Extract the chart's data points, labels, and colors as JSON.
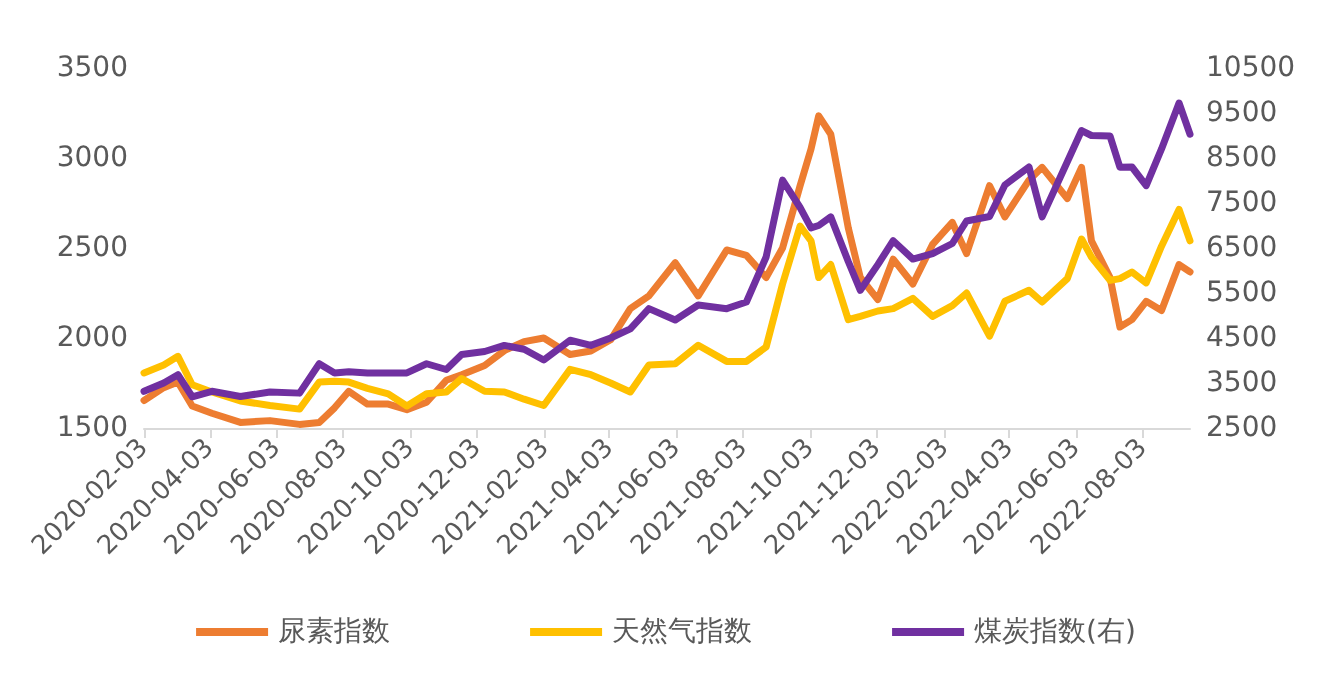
{
  "chart_data": {
    "type": "line",
    "x": [
      "2020-02-03",
      "2020-02-21",
      "2020-03-05",
      "2020-03-18",
      "2020-04-05",
      "2020-05-01",
      "2020-05-28",
      "2020-06-24",
      "2020-07-12",
      "2020-07-26",
      "2020-08-08",
      "2020-08-25",
      "2020-09-13",
      "2020-09-30",
      "2020-10-18",
      "2020-11-05",
      "2020-11-19",
      "2020-12-10",
      "2020-12-28",
      "2021-01-15",
      "2021-02-02",
      "2021-02-26",
      "2021-03-17",
      "2021-04-04",
      "2021-04-22",
      "2021-05-09",
      "2021-06-02",
      "2021-06-23",
      "2021-07-19",
      "2021-08-06",
      "2021-08-24",
      "2021-09-08",
      "2021-09-24",
      "2021-10-04",
      "2021-10-11",
      "2021-10-22",
      "2021-11-07",
      "2021-11-18",
      "2021-12-04",
      "2021-12-18",
      "2022-01-05",
      "2022-01-23",
      "2022-02-10",
      "2022-02-23",
      "2022-03-16",
      "2022-03-30",
      "2022-04-21",
      "2022-05-03",
      "2022-05-26",
      "2022-06-08",
      "2022-06-17",
      "2022-07-04",
      "2022-07-13",
      "2022-07-24",
      "2022-08-06",
      "2022-08-20",
      "2022-09-05",
      "2022-09-15"
    ],
    "series": [
      {
        "name": "尿素指数",
        "color": "#ed7d31",
        "values": [
          1653,
          1724,
          1755,
          1622,
          1582,
          1531,
          1541,
          1520,
          1531,
          1612,
          1704,
          1633,
          1633,
          1602,
          1643,
          1765,
          1796,
          1847,
          1930,
          1980,
          2000,
          1908,
          1928,
          1990,
          2163,
          2234,
          2418,
          2234,
          2489,
          2459,
          2336,
          2500,
          2846,
          3050,
          3234,
          3132,
          2612,
          2336,
          2214,
          2438,
          2300,
          2520,
          2642,
          2469,
          2846,
          2673,
          2877,
          2948,
          2775,
          2948,
          2540,
          2336,
          2061,
          2102,
          2204,
          2153,
          2408,
          2367
        ]
      },
      {
        "name": "天然气指数",
        "color": "#ffc000",
        "values": [
          1806,
          1850,
          1898,
          1740,
          1700,
          1650,
          1625,
          1605,
          1755,
          1760,
          1755,
          1720,
          1690,
          1622,
          1690,
          1700,
          1775,
          1704,
          1700,
          1660,
          1625,
          1826,
          1796,
          1750,
          1700,
          1850,
          1857,
          1960,
          1870,
          1870,
          1950,
          2300,
          2622,
          2540,
          2336,
          2408,
          2102,
          2120,
          2150,
          2163,
          2220,
          2120,
          2180,
          2250,
          2010,
          2204,
          2265,
          2200,
          2330,
          2550,
          2450,
          2320,
          2330,
          2367,
          2306,
          2510,
          2714,
          2540
        ]
      },
      {
        "name": "煤炭指数(右)",
        "color": "#7030a0",
        "axis": "y2",
        "values": [
          3316,
          3500,
          3683,
          3194,
          3316,
          3200,
          3300,
          3275,
          3928,
          3724,
          3750,
          3724,
          3724,
          3724,
          3928,
          3800,
          4132,
          4200,
          4336,
          4250,
          4010,
          4450,
          4336,
          4500,
          4703,
          5152,
          4900,
          5234,
          5152,
          5300,
          6300,
          8008,
          7400,
          6947,
          7000,
          7192,
          6200,
          5560,
          6131,
          6662,
          6254,
          6376,
          6600,
          7100,
          7200,
          7900,
          8300,
          7192,
          8416,
          9110,
          9000,
          8987,
          8294,
          8300,
          7886,
          8702,
          9722,
          9028
        ]
      }
    ],
    "xlim": [
      "2020-02-03",
      "2022-09-15"
    ],
    "xticks": [
      "2020-02-03",
      "2020-04-03",
      "2020-06-03",
      "2020-08-03",
      "2020-10-03",
      "2020-12-03",
      "2021-02-03",
      "2021-04-03",
      "2021-06-03",
      "2021-08-03",
      "2021-10-03",
      "2021-12-03",
      "2022-02-03",
      "2022-04-03",
      "2022-06-03",
      "2022-08-03"
    ],
    "ylim": [
      1500,
      3500
    ],
    "yticks": [
      1500,
      2000,
      2500,
      3000,
      3500
    ],
    "y2lim": [
      2500,
      10500
    ],
    "y2ticks": [
      2500,
      3500,
      4500,
      5500,
      6500,
      7500,
      8500,
      9500,
      10500
    ],
    "grid": false,
    "legend": "bottom",
    "marker": "none",
    "line_style": "solid"
  }
}
